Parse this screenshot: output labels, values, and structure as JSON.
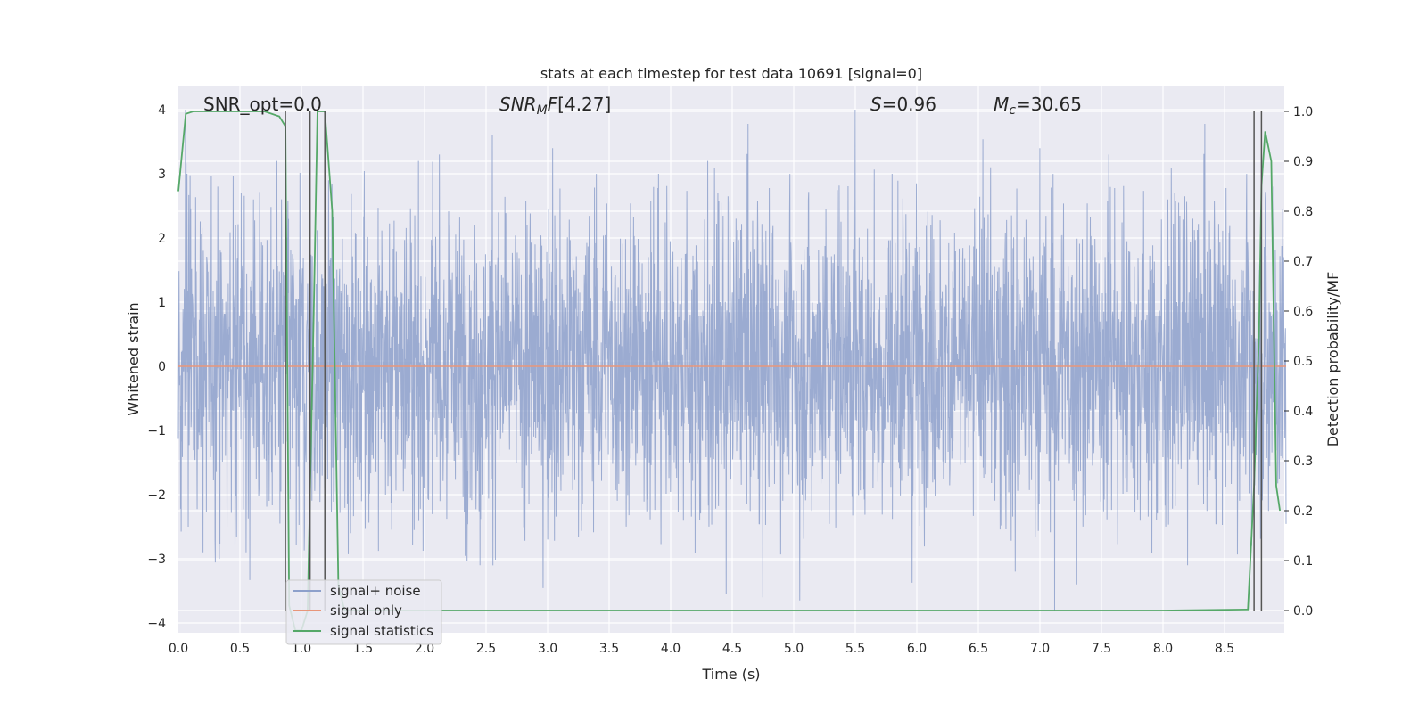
{
  "chart_data": {
    "type": "line",
    "title": "stats at each timestep for test data 10691 [signal=0]",
    "xlabel": "Time (s)",
    "ylabel": "Whitened strain",
    "ylabel_right": "Detection probability/MF",
    "xlim": [
      0.0,
      9.0
    ],
    "ylim": [
      -4.2,
      4.4
    ],
    "ylim_right": [
      -0.048,
      1.048
    ],
    "x_ticks": [
      "0.0",
      "0.5",
      "1.0",
      "1.5",
      "2.0",
      "2.5",
      "3.0",
      "3.5",
      "4.0",
      "4.5",
      "5.0",
      "5.5",
      "6.0",
      "6.5",
      "7.0",
      "7.5",
      "8.0",
      "8.5"
    ],
    "y_ticks": [
      "4",
      "3",
      "2",
      "1",
      "0",
      "−1",
      "−2",
      "−3",
      "−4"
    ],
    "y_right_ticks": [
      "1.0",
      "0.9",
      "0.8",
      "0.7",
      "0.6",
      "0.5",
      "0.4",
      "0.3",
      "0.2",
      "0.1",
      "0.0"
    ],
    "grid": true,
    "legend_position": "lower-left",
    "annotations": {
      "snr_opt": "SNR_opt=0.0",
      "snr_mf": "[4.27]",
      "s_value": "=0.96",
      "mc_value": "=30.65"
    },
    "series": [
      {
        "name": "signal+ noise",
        "color": "#8da0cb",
        "kind": "noise",
        "duration": 9.0,
        "typical_range": [
          -1.5,
          1.6
        ],
        "peak_range": [
          -3.8,
          4.0
        ],
        "spikes": [
          {
            "x": 0.07,
            "y": 3.0
          },
          {
            "x": 0.32,
            "y": 2.8
          },
          {
            "x": 0.51,
            "y": 2.7
          },
          {
            "x": 0.61,
            "y": 2.6
          },
          {
            "x": 0.8,
            "y": 3.2
          },
          {
            "x": 1.22,
            "y": 2.9
          },
          {
            "x": 1.95,
            "y": 3.2
          },
          {
            "x": 2.12,
            "y": 3.3
          },
          {
            "x": 2.55,
            "y": 3.6
          },
          {
            "x": 3.04,
            "y": 3.4
          },
          {
            "x": 3.9,
            "y": 3.0
          },
          {
            "x": 4.3,
            "y": 3.2
          },
          {
            "x": 5.5,
            "y": 4.0
          },
          {
            "x": 5.8,
            "y": 3.0
          },
          {
            "x": 6.6,
            "y": 3.1
          },
          {
            "x": 7.0,
            "y": 3.4
          },
          {
            "x": 7.56,
            "y": 3.3
          },
          {
            "x": 8.04,
            "y": 2.6
          },
          {
            "x": 8.9,
            "y": 2.8
          },
          {
            "x": 0.08,
            "y": -2.5
          },
          {
            "x": 0.2,
            "y": -2.9
          },
          {
            "x": 0.55,
            "y": -2.9
          },
          {
            "x": 2.45,
            "y": -3.1
          },
          {
            "x": 3.0,
            "y": -2.7
          },
          {
            "x": 4.45,
            "y": -3.55
          },
          {
            "x": 4.75,
            "y": -3.6
          },
          {
            "x": 5.05,
            "y": -3.65
          },
          {
            "x": 6.8,
            "y": -3.2
          },
          {
            "x": 7.12,
            "y": -3.8
          },
          {
            "x": 7.3,
            "y": -3.4
          },
          {
            "x": 8.2,
            "y": -3.1
          },
          {
            "x": 8.72,
            "y": -2.8
          }
        ]
      },
      {
        "name": "signal only",
        "color": "#e8967a",
        "x": [
          0.0,
          9.0
        ],
        "y": [
          0.0,
          0.0
        ]
      },
      {
        "name": "signal statistics",
        "color": "#55a868",
        "axis": "right",
        "x": [
          0.0,
          0.06,
          0.12,
          0.45,
          0.7,
          0.82,
          0.87,
          0.9,
          0.95,
          1.0,
          1.05,
          1.1,
          1.13,
          1.19,
          1.25,
          1.3,
          1.35,
          1.5,
          3.0,
          5.0,
          7.0,
          8.0,
          8.69,
          8.74,
          8.78,
          8.8,
          8.83,
          8.88,
          8.92,
          8.95
        ],
        "y": [
          0.84,
          0.995,
          1.0,
          1.0,
          1.0,
          0.99,
          0.97,
          0.01,
          -0.04,
          -0.04,
          0.0,
          0.6,
          1.0,
          1.0,
          0.8,
          0.05,
          0.0,
          0.0,
          0.0,
          0.0,
          0.0,
          0.0,
          0.002,
          0.25,
          0.55,
          0.85,
          0.96,
          0.9,
          0.25,
          0.2
        ]
      },
      {
        "name": "markers",
        "color": "#555555",
        "kind": "vlines",
        "axis": "right",
        "x": [
          0.87,
          1.07,
          1.19,
          8.74,
          8.8
        ],
        "ymin": 0.0,
        "ymax": 1.0
      }
    ]
  }
}
